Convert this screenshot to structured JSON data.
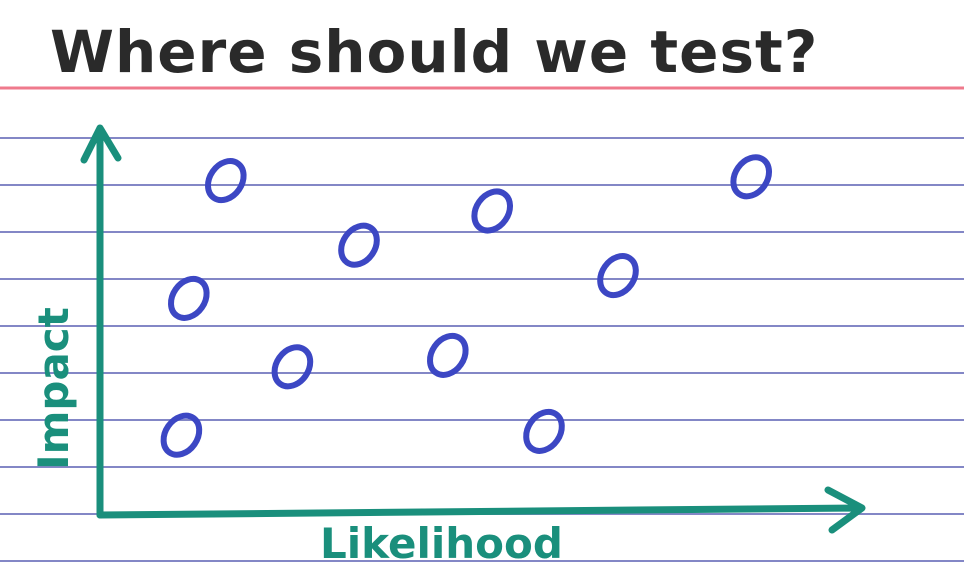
{
  "chart_data": {
    "type": "scatter",
    "title": "Where should we test?",
    "xlabel": "Likelihood",
    "ylabel": "Impact",
    "xlim": [
      0,
      10
    ],
    "ylim": [
      0,
      10
    ],
    "grid": false,
    "points": [
      {
        "x": 1.7,
        "y": 8.8
      },
      {
        "x": 1.2,
        "y": 5.7
      },
      {
        "x": 1.1,
        "y": 2.1
      },
      {
        "x": 2.6,
        "y": 3.9
      },
      {
        "x": 3.5,
        "y": 7.1
      },
      {
        "x": 4.7,
        "y": 4.2
      },
      {
        "x": 5.3,
        "y": 8.0
      },
      {
        "x": 6.0,
        "y": 2.2
      },
      {
        "x": 7.0,
        "y": 6.3
      },
      {
        "x": 8.8,
        "y": 8.9
      }
    ]
  },
  "colors": {
    "paper": "#ffffff",
    "ruled_line": "#5a5fb3",
    "margin_line": "#ef7a8c",
    "title_ink": "#2a2a2a",
    "axis_ink": "#1a8f7c",
    "point_ink": "#3c47c4"
  }
}
